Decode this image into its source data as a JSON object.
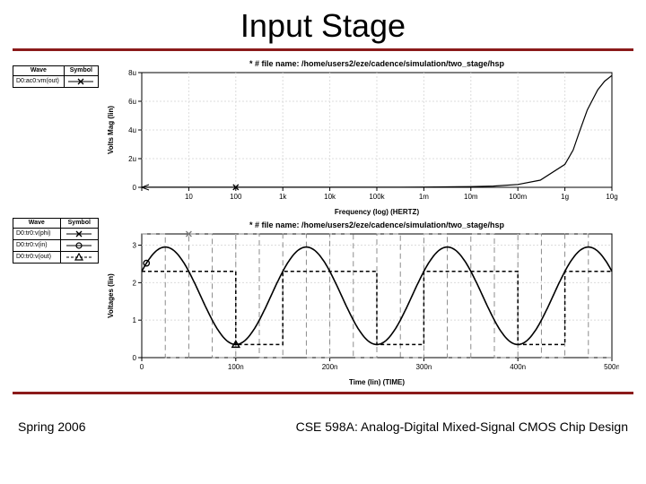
{
  "title": "Input Stage",
  "footer_left": "Spring 2006",
  "footer_right": "CSE 598A: Analog-Digital Mixed-Signal CMOS Chip Design",
  "rule_color": "#8b1a1a",
  "legend1": {
    "headers": [
      "Wave",
      "Symbol"
    ],
    "rows": [
      {
        "label": "D0:ac0:vm(out)",
        "symbol": "x-line"
      }
    ]
  },
  "legend2": {
    "headers": [
      "Wave",
      "Symbol"
    ],
    "rows": [
      {
        "label": "D0:tr0:v(phi)",
        "symbol": "x-line"
      },
      {
        "label": "D0:tr0:v(in)",
        "symbol": "o-line"
      },
      {
        "label": "D0:tr0:v(out)",
        "symbol": "tri-dash"
      }
    ]
  },
  "chart1": {
    "type": "line",
    "title": "* # file name: /home/users2/eze/cadence/simulation/two_stage/hsp",
    "title_fontsize": 9,
    "ylabel": "Volts Mag (lin)",
    "xlabel": "Frequency (log) (HERTZ)",
    "label_fontsize": 8,
    "tick_fontsize": 8,
    "xscale": "log",
    "xlim": [
      1,
      10000000000.0
    ],
    "xticks_pos": [
      1,
      10,
      100,
      1000,
      10000.0,
      100000.0,
      1000000.0,
      10000000.0,
      100000000.0,
      1000000000.0,
      10000000000.0
    ],
    "xtick_labels": [
      "",
      "10",
      "100",
      "1k",
      "10k",
      "100k",
      "1m",
      "10m",
      "100m",
      "1g",
      "10g"
    ],
    "ylim": [
      0,
      8
    ],
    "yticks": [
      0,
      2,
      4,
      6,
      8
    ],
    "ytick_labels": [
      "0",
      "2u",
      "4u",
      "6u",
      "8u"
    ],
    "background_color": "#ffffff",
    "grid_color": "#dcdcdc",
    "axis_color": "#000000",
    "series": [
      {
        "name": "vm(out)",
        "color": "#000000",
        "line_width": 1.2,
        "marker": "x",
        "data": [
          [
            1,
            0.01
          ],
          [
            3,
            0.01
          ],
          [
            10,
            0.01
          ],
          [
            30,
            0.01
          ],
          [
            100,
            0.01
          ],
          [
            300,
            0.01
          ],
          [
            1000.0,
            0.01
          ],
          [
            3000.0,
            0.01
          ],
          [
            10000.0,
            0.01
          ],
          [
            30000.0,
            0.01
          ],
          [
            100000.0,
            0.012
          ],
          [
            300000.0,
            0.015
          ],
          [
            1000000.0,
            0.02
          ],
          [
            3000000.0,
            0.03
          ],
          [
            10000000.0,
            0.05
          ],
          [
            30000000.0,
            0.09
          ],
          [
            100000000.0,
            0.2
          ],
          [
            300000000.0,
            0.5
          ],
          [
            1000000000.0,
            1.6
          ],
          [
            1500000000.0,
            2.6
          ],
          [
            2000000000.0,
            3.8
          ],
          [
            3000000000.0,
            5.4
          ],
          [
            5000000000.0,
            6.8
          ],
          [
            7000000000.0,
            7.4
          ],
          [
            10000000000.0,
            7.8
          ]
        ]
      }
    ]
  },
  "chart2": {
    "type": "line",
    "title": "* # file name: /home/users2/eze/cadence/simulation/two_stage/hsp",
    "title_fontsize": 9,
    "ylabel": "Voltages (lin)",
    "xlabel": "Time (lin) (TIME)",
    "label_fontsize": 8,
    "tick_fontsize": 8,
    "xscale": "linear",
    "xlim": [
      0,
      500
    ],
    "xticks_pos": [
      0,
      100,
      200,
      300,
      400,
      500
    ],
    "xtick_labels": [
      "0",
      "100n",
      "200n",
      "300n",
      "400n",
      "500n"
    ],
    "ylim": [
      0,
      3.3
    ],
    "yticks": [
      0,
      1,
      2,
      3
    ],
    "ytick_labels": [
      "0",
      "1",
      "2",
      "3"
    ],
    "background_color": "#ffffff",
    "grid_color": "#dcdcdc",
    "axis_color": "#000000",
    "series": [
      {
        "name": "v(phi)",
        "type": "square",
        "color": "#808080",
        "line_width": 0.9,
        "dash": "6 4",
        "marker": "x",
        "period": 50,
        "high": 3.3,
        "low": 0
      },
      {
        "name": "v(in)",
        "type": "sine",
        "color": "#000000",
        "line_width": 1.6,
        "marker": "o",
        "amplitude": 1.3,
        "offset": 1.65,
        "period": 150,
        "phase_deg": 30
      },
      {
        "name": "v(out)",
        "type": "sampled",
        "color": "#000000",
        "line_width": 1.5,
        "dash": "4 3",
        "marker": "triangle",
        "source": "v(in)",
        "sample_period": 50
      }
    ]
  }
}
